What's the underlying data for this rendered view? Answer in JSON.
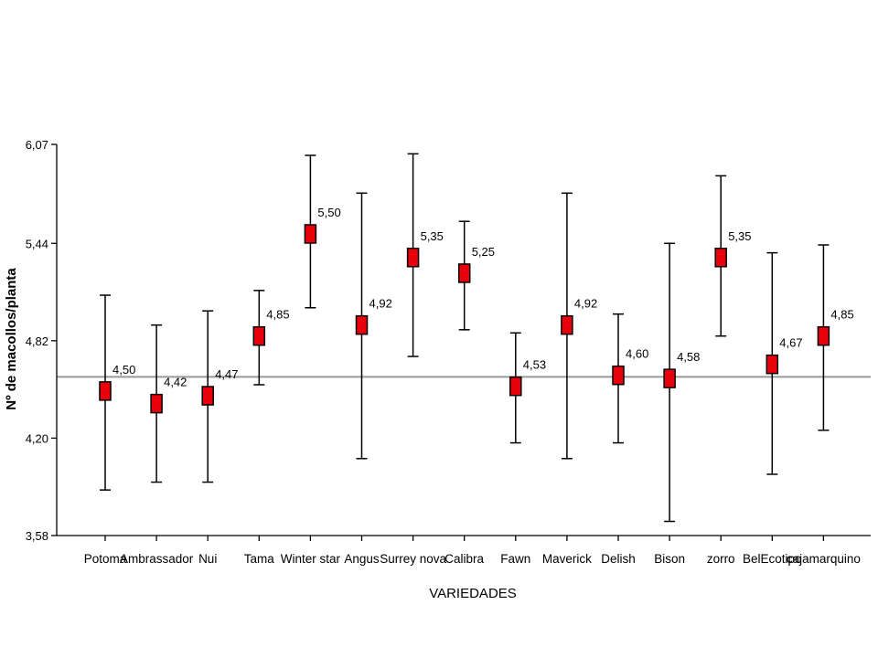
{
  "chart_data": {
    "type": "scatter",
    "subtype": "mean-with-error-bars",
    "title": "",
    "xlabel": "VARIEDADES",
    "ylabel": "Nº de macollos/planta",
    "ylim": [
      3.58,
      6.07
    ],
    "yticks": [
      "3,58",
      "4,20",
      "4,82",
      "5,44",
      "6,07"
    ],
    "ytick_values": [
      3.58,
      4.2,
      4.82,
      5.44,
      6.07
    ],
    "reference_line": 4.59,
    "categories": [
      "Potoma",
      "Ambrassador",
      "Nui",
      "Tama",
      "Winter star",
      "Angus",
      "Surrey nova",
      "Calibra",
      "Fawn",
      "Maverick",
      "Delish",
      "Bison",
      "zorro",
      "BelEcotipo",
      "cajamarquino"
    ],
    "values": [
      4.5,
      4.42,
      4.47,
      4.85,
      5.5,
      4.92,
      5.35,
      5.25,
      4.53,
      4.92,
      4.6,
      4.58,
      5.35,
      4.67,
      4.85
    ],
    "value_labels": [
      "4,50",
      "4,42",
      "4,47",
      "4,85",
      "5,50",
      "4,92",
      "5,35",
      "5,25",
      "4,53",
      "4,92",
      "4,60",
      "4,58",
      "5,35",
      "4,67",
      "4,85"
    ],
    "upper": [
      5.11,
      4.92,
      5.01,
      5.14,
      6.0,
      5.76,
      6.01,
      5.58,
      4.87,
      5.76,
      4.99,
      5.44,
      5.87,
      5.38,
      5.43
    ],
    "lower": [
      3.87,
      3.92,
      3.92,
      4.54,
      5.03,
      4.07,
      4.72,
      4.89,
      4.17,
      4.07,
      4.17,
      3.67,
      4.85,
      3.97,
      4.25
    ],
    "grid": false,
    "legend": "none",
    "colors": {
      "marker_fill": "#e8000b",
      "marker_stroke": "#000000",
      "reference_line": "#999999",
      "error_bar": "#000000"
    }
  }
}
